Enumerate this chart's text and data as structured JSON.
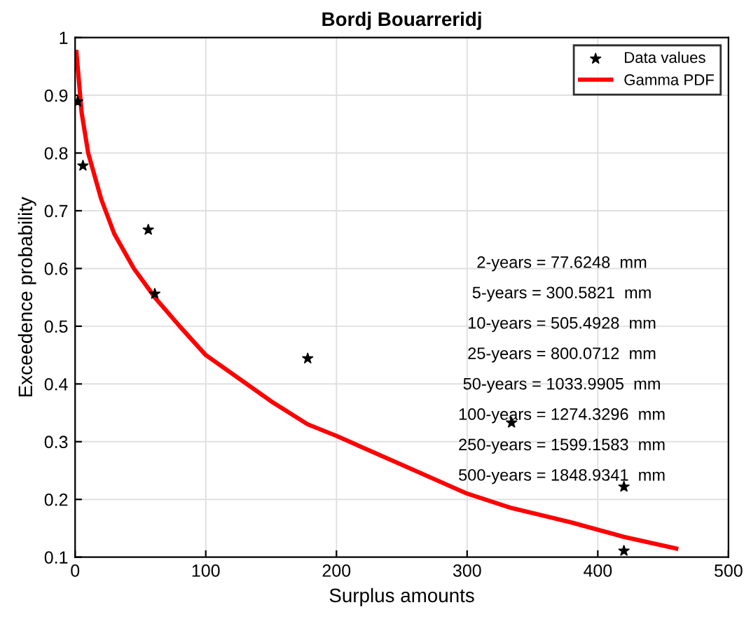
{
  "chart_data": {
    "type": "scatter",
    "title": "Bordj Bouarreridj",
    "xlabel": "Surplus amounts",
    "ylabel": "Exceedence probability",
    "series": [
      {
        "name": "Data values",
        "color": "#000000",
        "marker": "star",
        "x": [
          2,
          6,
          56,
          61,
          178,
          334,
          420,
          420
        ],
        "values": [
          0.889,
          0.778,
          0.667,
          0.556,
          0.444,
          0.333,
          0.222,
          0.111
        ]
      },
      {
        "name": "Gamma PDF",
        "type": "line",
        "color": "#ff0000",
        "marker": "none",
        "x": [
          1,
          5,
          10,
          20,
          30,
          45,
          61,
          80,
          100,
          125,
          150,
          178,
          200,
          250,
          300,
          334,
          380,
          420,
          460
        ],
        "values": [
          0.975,
          0.87,
          0.8,
          0.72,
          0.66,
          0.6,
          0.55,
          0.5,
          0.45,
          0.41,
          0.37,
          0.33,
          0.31,
          0.26,
          0.21,
          0.185,
          0.16,
          0.135,
          0.115
        ]
      }
    ],
    "xlim": [
      0,
      500
    ],
    "xticks": [
      0,
      100,
      200,
      300,
      400,
      500
    ],
    "ylim": [
      0.1,
      1
    ],
    "yticks": [
      0.1,
      0.2,
      0.3,
      0.4,
      0.5,
      0.6,
      0.7,
      0.8,
      0.9,
      1
    ],
    "grid": true,
    "legend": "top right",
    "annotations": [
      "2-years = 77.6248  mm",
      "5-years = 300.5821  mm",
      "10-years = 505.4928  mm",
      "25-years = 800.0712  mm",
      "50-years = 1033.9905  mm",
      "100-years = 1274.3296  mm",
      "250-years = 1599.1583  mm",
      "500-years = 1848.9341  mm"
    ]
  }
}
